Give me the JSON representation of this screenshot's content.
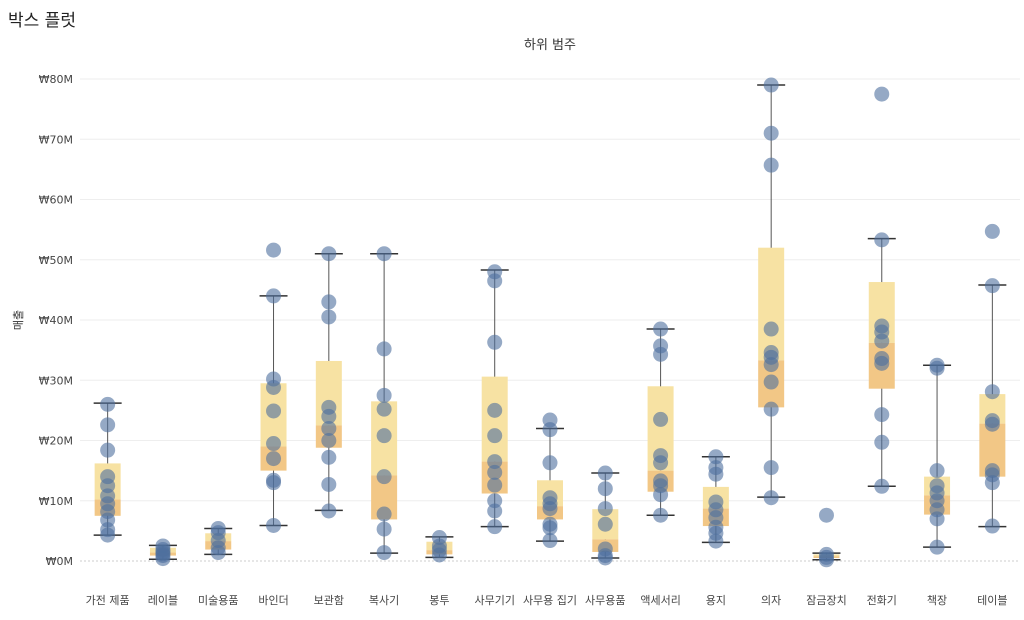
{
  "page": {
    "title": "박스 플럿"
  },
  "chart_data": {
    "type": "box",
    "column_header": "하위 범주",
    "ylabel": "매출",
    "ylim": [
      -5,
      83
    ],
    "y_ticks": [
      {
        "value": 0,
        "label": "₩0M"
      },
      {
        "value": 10,
        "label": "₩10M"
      },
      {
        "value": 20,
        "label": "₩20M"
      },
      {
        "value": 30,
        "label": "₩30M"
      },
      {
        "value": 40,
        "label": "₩40M"
      },
      {
        "value": 50,
        "label": "₩50M"
      },
      {
        "value": 60,
        "label": "₩60M"
      },
      {
        "value": 70,
        "label": "₩70M"
      },
      {
        "value": 80,
        "label": "₩80M"
      }
    ],
    "categories": [
      {
        "name": "가전 제품",
        "q1": 7.5,
        "median": 10.2,
        "q3": 16.2,
        "whisker_low": 4.3,
        "whisker_high": 26.2,
        "points": [
          26.0,
          22.6,
          18.4,
          14.0,
          12.5,
          10.8,
          9.5,
          8.2,
          6.8,
          5.2,
          4.3
        ]
      },
      {
        "name": "레이블",
        "q1": 0.9,
        "median": 1.4,
        "q3": 2.2,
        "whisker_low": 0.3,
        "whisker_high": 2.6,
        "points": [
          2.5,
          1.9,
          1.5,
          1.2,
          0.9,
          0.4
        ]
      },
      {
        "name": "미술용품",
        "q1": 1.9,
        "median": 3.3,
        "q3": 4.6,
        "whisker_low": 1.1,
        "whisker_high": 5.4,
        "points": [
          5.4,
          4.7,
          3.4,
          2.2,
          1.4
        ]
      },
      {
        "name": "바인더",
        "q1": 15.0,
        "median": 19.0,
        "q3": 29.5,
        "whisker_low": 5.9,
        "whisker_high": 44.0,
        "points": [
          51.6,
          44.0,
          30.2,
          28.8,
          24.9,
          19.5,
          17.0,
          13.4,
          13.0,
          5.9
        ]
      },
      {
        "name": "보관함",
        "q1": 18.8,
        "median": 22.5,
        "q3": 33.2,
        "whisker_low": 8.4,
        "whisker_high": 51.0,
        "points": [
          51.0,
          43.0,
          40.5,
          25.5,
          24.0,
          22.0,
          20.0,
          17.2,
          12.7,
          8.3
        ]
      },
      {
        "name": "복사기",
        "q1": 6.9,
        "median": 14.2,
        "q3": 26.5,
        "whisker_low": 1.3,
        "whisker_high": 51.0,
        "points": [
          51.0,
          35.2,
          27.5,
          25.2,
          20.8,
          14.0,
          7.8,
          5.3,
          1.4
        ]
      },
      {
        "name": "봉투",
        "q1": 1.1,
        "median": 1.8,
        "q3": 3.2,
        "whisker_low": 0.6,
        "whisker_high": 4.0,
        "points": [
          3.9,
          2.5,
          1.8,
          1.0
        ]
      },
      {
        "name": "사무기기",
        "q1": 11.2,
        "median": 16.5,
        "q3": 30.6,
        "whisker_low": 5.7,
        "whisker_high": 48.3,
        "points": [
          48.0,
          46.5,
          36.3,
          25.0,
          20.8,
          16.5,
          14.7,
          12.6,
          10.0,
          8.3,
          5.7
        ]
      },
      {
        "name": "사무용 집기",
        "q1": 6.9,
        "median": 9.1,
        "q3": 13.4,
        "whisker_low": 3.3,
        "whisker_high": 22.0,
        "points": [
          23.4,
          21.8,
          16.3,
          10.5,
          9.5,
          8.7,
          6.1,
          5.5,
          3.4
        ]
      },
      {
        "name": "사무용품",
        "q1": 1.5,
        "median": 3.6,
        "q3": 8.6,
        "whisker_low": 0.5,
        "whisker_high": 14.6,
        "points": [
          14.6,
          12.0,
          8.7,
          6.1,
          2.0,
          0.9,
          0.5
        ]
      },
      {
        "name": "액세서리",
        "q1": 11.5,
        "median": 15.0,
        "q3": 29.0,
        "whisker_low": 7.6,
        "whisker_high": 38.5,
        "points": [
          38.5,
          35.7,
          34.3,
          23.5,
          17.5,
          16.3,
          13.3,
          12.5,
          11.0,
          7.6
        ]
      },
      {
        "name": "용지",
        "q1": 5.8,
        "median": 8.7,
        "q3": 12.3,
        "whisker_low": 3.1,
        "whisker_high": 17.3,
        "points": [
          17.3,
          15.5,
          14.4,
          9.8,
          8.5,
          7.2,
          5.6,
          4.6,
          3.3
        ]
      },
      {
        "name": "의자",
        "q1": 25.5,
        "median": 33.3,
        "q3": 52.0,
        "whisker_low": 10.6,
        "whisker_high": 79.0,
        "points": [
          79.0,
          71.0,
          65.7,
          38.5,
          34.6,
          33.8,
          32.6,
          29.7,
          25.2,
          15.5,
          10.5
        ]
      },
      {
        "name": "잠금장치",
        "q1": 0.5,
        "median": 0.8,
        "q3": 1.1,
        "whisker_low": 0.2,
        "whisker_high": 1.3,
        "points": [
          7.6,
          1.1,
          0.6,
          0.2
        ]
      },
      {
        "name": "전화기",
        "q1": 28.6,
        "median": 36.2,
        "q3": 46.3,
        "whisker_low": 12.4,
        "whisker_high": 53.5,
        "points": [
          77.5,
          53.3,
          39.0,
          38.0,
          36.5,
          33.6,
          32.8,
          24.3,
          19.7,
          12.4
        ]
      },
      {
        "name": "책장",
        "q1": 7.7,
        "median": 10.9,
        "q3": 14.0,
        "whisker_low": 2.3,
        "whisker_high": 32.5,
        "points": [
          32.5,
          32.0,
          15.0,
          12.5,
          11.3,
          10.0,
          8.5,
          7.0,
          2.3
        ]
      },
      {
        "name": "테이블",
        "q1": 14.0,
        "median": 22.8,
        "q3": 27.7,
        "whisker_low": 5.7,
        "whisker_high": 45.8,
        "points": [
          54.7,
          45.7,
          28.1,
          23.3,
          22.7,
          15.0,
          14.3,
          13.0,
          5.8
        ]
      }
    ],
    "colors": {
      "point": "#4e6f9f",
      "box_upper": "#f7e2a3",
      "box_lower": "#f2c786",
      "whisker": "#555555",
      "grid": "#eeeeee"
    },
    "grid": true
  }
}
